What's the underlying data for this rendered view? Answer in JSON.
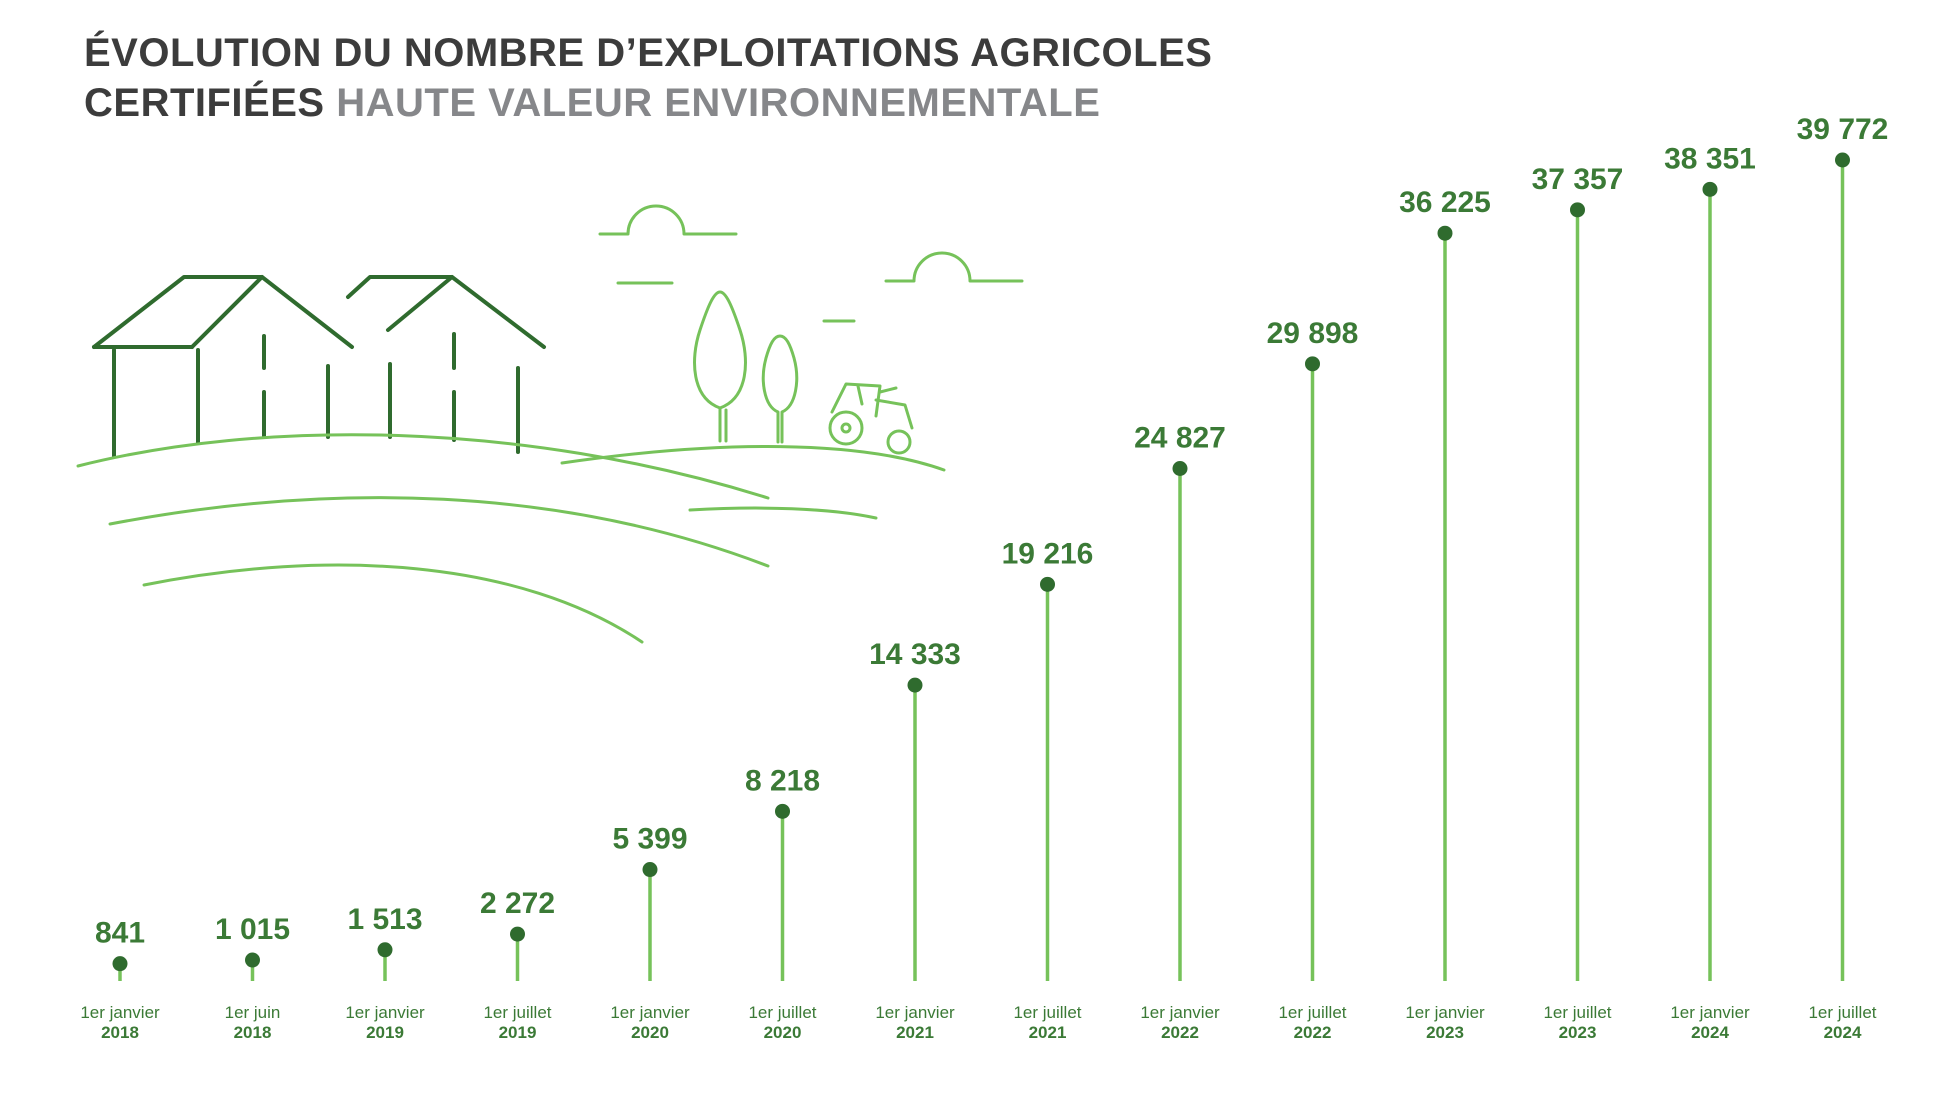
{
  "title": {
    "line1": "ÉVOLUTION DU NOMBRE D’EXPLOITATIONS AGRICOLES",
    "line2_dark": "CERTIFIÉES",
    "line2_light": "HAUTE VALEUR ENVIRONNEMENTALE"
  },
  "colors": {
    "stem": "#76c25a",
    "dot": "#2f6b2e",
    "label": "#3b7a36",
    "illustration_dark": "#2f6b2e",
    "illustration_light": "#76c25a"
  },
  "illustration": {
    "icons": [
      "farm-buildings-icon",
      "trees-icon",
      "tractor-icon",
      "sun-icon",
      "fields-icon"
    ]
  },
  "chart_data": {
    "type": "lollipop",
    "title": "ÉVOLUTION DU NOMBRE D’EXPLOITATIONS AGRICOLES CERTIFIÉES HAUTE VALEUR ENVIRONNEMENTALE",
    "xlabel": "",
    "ylabel": "",
    "ylim": [
      0,
      42000
    ],
    "grid": false,
    "categories": [
      {
        "line1": "1er janvier",
        "line2": "2018"
      },
      {
        "line1": "1er juin",
        "line2": "2018"
      },
      {
        "line1": "1er janvier",
        "line2": "2019"
      },
      {
        "line1": "1er juillet",
        "line2": "2019"
      },
      {
        "line1": "1er janvier",
        "line2": "2020"
      },
      {
        "line1": "1er juillet",
        "line2": "2020"
      },
      {
        "line1": "1er janvier",
        "line2": "2021"
      },
      {
        "line1": "1er juillet",
        "line2": "2021"
      },
      {
        "line1": "1er janvier",
        "line2": "2022"
      },
      {
        "line1": "1er juillet",
        "line2": "2022"
      },
      {
        "line1": "1er janvier",
        "line2": "2023"
      },
      {
        "line1": "1er juillet",
        "line2": "2023"
      },
      {
        "line1": "1er janvier",
        "line2": "2024"
      },
      {
        "line1": "1er juillet",
        "line2": "2024"
      }
    ],
    "values": [
      841,
      1015,
      1513,
      2272,
      5399,
      8218,
      14333,
      19216,
      24827,
      29898,
      36225,
      37357,
      38351,
      39772
    ],
    "value_labels": [
      "841",
      "1 015",
      "1 513",
      "2 272",
      "5 399",
      "8 218",
      "14 333",
      "19 216",
      "24 827",
      "29 898",
      "36 225",
      "37 357",
      "38 351",
      "39 772"
    ]
  }
}
